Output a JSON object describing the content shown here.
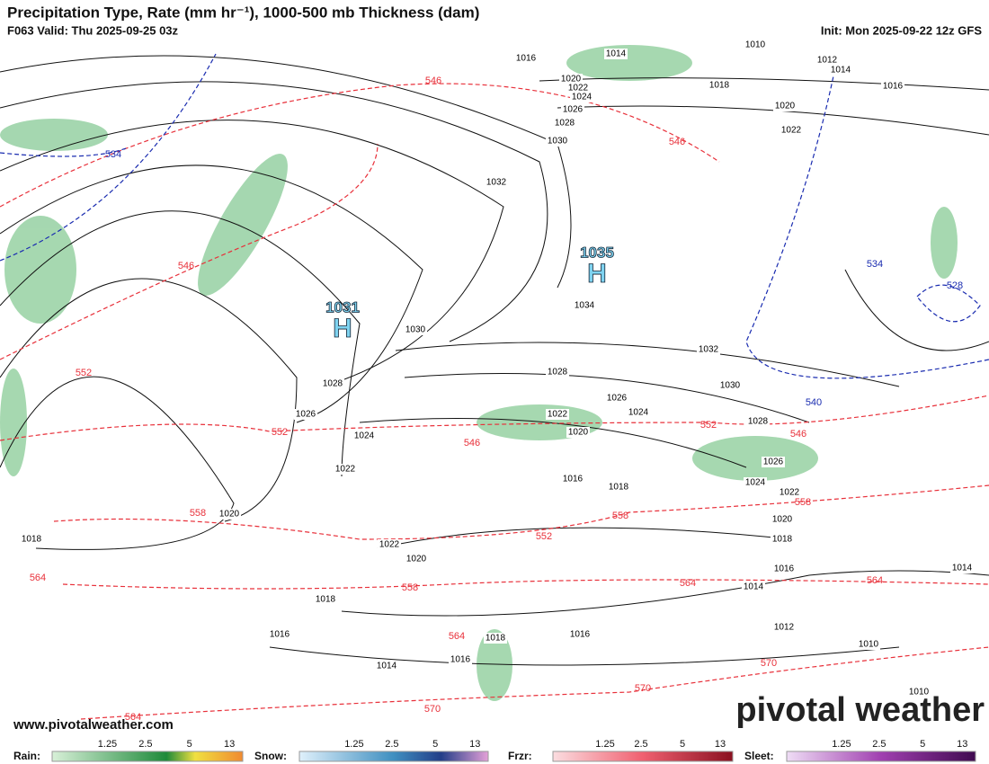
{
  "header": {
    "title": "Precipitation Type, Rate (mm hr⁻¹), 1000-500 mb Thickness (dam)",
    "valid": "F063 Valid: Thu 2025-09-25 03z",
    "init": "Init: Mon 2025-09-22 12z GFS"
  },
  "highs": [
    {
      "pressure": "1035",
      "symbol": "H"
    },
    {
      "pressure": "1031",
      "symbol": "H"
    }
  ],
  "isobar_labels": [
    "1010",
    "1016",
    "1014",
    "1012",
    "1014",
    "1016",
    "1020",
    "1022",
    "1024",
    "1026",
    "1028",
    "1030",
    "1018",
    "1020",
    "1022",
    "1032",
    "1034",
    "1030",
    "1032",
    "1028",
    "1030",
    "1028",
    "1026",
    "1024",
    "1022",
    "1026",
    "1024",
    "1020",
    "1028",
    "1022",
    "1016",
    "1018",
    "1026",
    "1024",
    "1022",
    "1020",
    "1020",
    "1018",
    "1018",
    "1022",
    "1020",
    "1016",
    "1014",
    "1014",
    "1018",
    "1016",
    "1012",
    "1018",
    "1016",
    "1010",
    "1014",
    "1016",
    "1010"
  ],
  "thickness_labels": [
    "546",
    "546",
    "546",
    "552",
    "552",
    "546",
    "552",
    "546",
    "558",
    "558",
    "552",
    "558",
    "564",
    "558",
    "564",
    "564",
    "564",
    "570",
    "570",
    "570",
    "564"
  ],
  "thickness_labels_cold": [
    "534",
    "534",
    "528",
    "540"
  ],
  "footer": {
    "website": "www.pivotalweather.com",
    "logo": "pivotal weather"
  },
  "legend": [
    {
      "label": "Rain:",
      "ticks": [
        "1.25",
        "2.5",
        "5",
        "13"
      ]
    },
    {
      "label": "Snow:",
      "ticks": [
        "1.25",
        "2.5",
        "5",
        "13"
      ]
    },
    {
      "label": "Frzr:",
      "ticks": [
        "1.25",
        "2.5",
        "5",
        "13"
      ]
    },
    {
      "label": "Sleet:",
      "ticks": [
        "1.25",
        "2.5",
        "5",
        "13"
      ]
    }
  ]
}
